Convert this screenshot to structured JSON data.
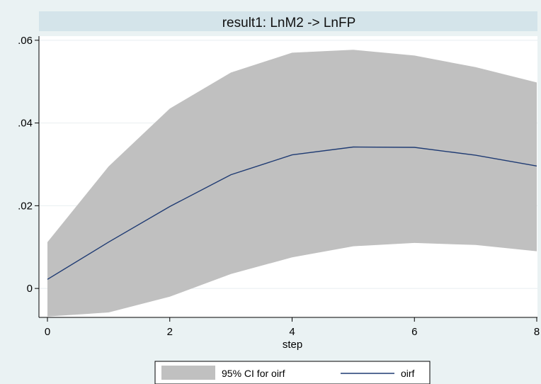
{
  "chart_data": {
    "type": "area",
    "title": "result1: LnM2 -> LnFP",
    "xlabel": "step",
    "ylabel": "",
    "xlim": [
      0,
      8
    ],
    "ylim": [
      -0.007,
      0.061
    ],
    "x_ticks": [
      0,
      2,
      4,
      6,
      8
    ],
    "x_tick_labels": [
      "0",
      "2",
      "4",
      "6",
      "8"
    ],
    "y_ticks": [
      0,
      0.02,
      0.04,
      0.06
    ],
    "y_tick_labels": [
      "0",
      ".02",
      ".04",
      ".06"
    ],
    "grid": true,
    "legend_position": "bottom",
    "x": [
      0,
      1,
      2,
      3,
      4,
      5,
      6,
      7,
      8
    ],
    "series": [
      {
        "name": "95% CI for oirf",
        "kind": "band",
        "color": "#c0c0c0",
        "lower": [
          -0.0068,
          -0.0058,
          -0.002,
          0.0035,
          0.0075,
          0.0102,
          0.011,
          0.0105,
          0.009
        ],
        "upper": [
          0.0112,
          0.0295,
          0.0435,
          0.0522,
          0.057,
          0.0577,
          0.0563,
          0.0535,
          0.0498
        ]
      },
      {
        "name": "oirf",
        "kind": "line",
        "color": "#1f3b73",
        "values": [
          0.0022,
          0.0112,
          0.0198,
          0.0275,
          0.0323,
          0.0342,
          0.0341,
          0.0322,
          0.0296
        ]
      }
    ]
  }
}
